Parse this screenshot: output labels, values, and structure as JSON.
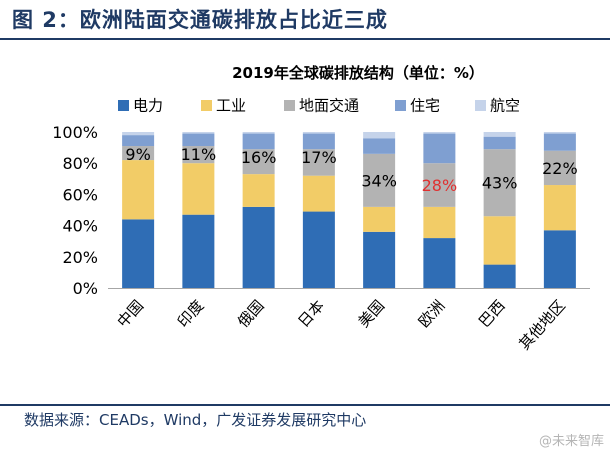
{
  "figure": {
    "title": "图 2：欧洲陆面交通碳排放占比近三成",
    "source": "数据来源：CEADs，Wind，广发证券发展研究中心",
    "watermark": "未来智库"
  },
  "chart_data": {
    "type": "bar",
    "stacked": true,
    "title": "2019年全球碳排放结构（单位：%）",
    "xlabel": "",
    "ylabel": "",
    "ylim": [
      0,
      100
    ],
    "y_ticks": [
      "0%",
      "20%",
      "40%",
      "60%",
      "80%",
      "100%"
    ],
    "categories": [
      "中国",
      "印度",
      "俄国",
      "日本",
      "美国",
      "欧洲",
      "巴西",
      "其他地区"
    ],
    "series": [
      {
        "name": "电力",
        "color": "#2f6db5",
        "values": [
          44,
          47,
          52,
          49,
          36,
          32,
          15,
          37
        ]
      },
      {
        "name": "工业",
        "color": "#f2cc67",
        "values": [
          38,
          33,
          21,
          23,
          16,
          20,
          31,
          29
        ]
      },
      {
        "name": "地面交通",
        "color": "#b3b3b3",
        "values": [
          9,
          11,
          16,
          17,
          34,
          28,
          43,
          22
        ]
      },
      {
        "name": "住宅",
        "color": "#7f9fd1",
        "values": [
          7,
          8,
          10,
          10,
          10,
          19,
          8,
          11
        ]
      },
      {
        "name": "航空",
        "color": "#c5d3ea",
        "values": [
          2,
          1,
          1,
          1,
          4,
          1,
          3,
          1
        ]
      }
    ],
    "annotations": [
      "9%",
      "11%",
      "16%",
      "17%",
      "34%",
      "28%",
      "43%",
      "22%"
    ],
    "highlight": {
      "category": "欧洲",
      "color": "#e03030"
    },
    "grid": false,
    "legend_position": "top"
  }
}
